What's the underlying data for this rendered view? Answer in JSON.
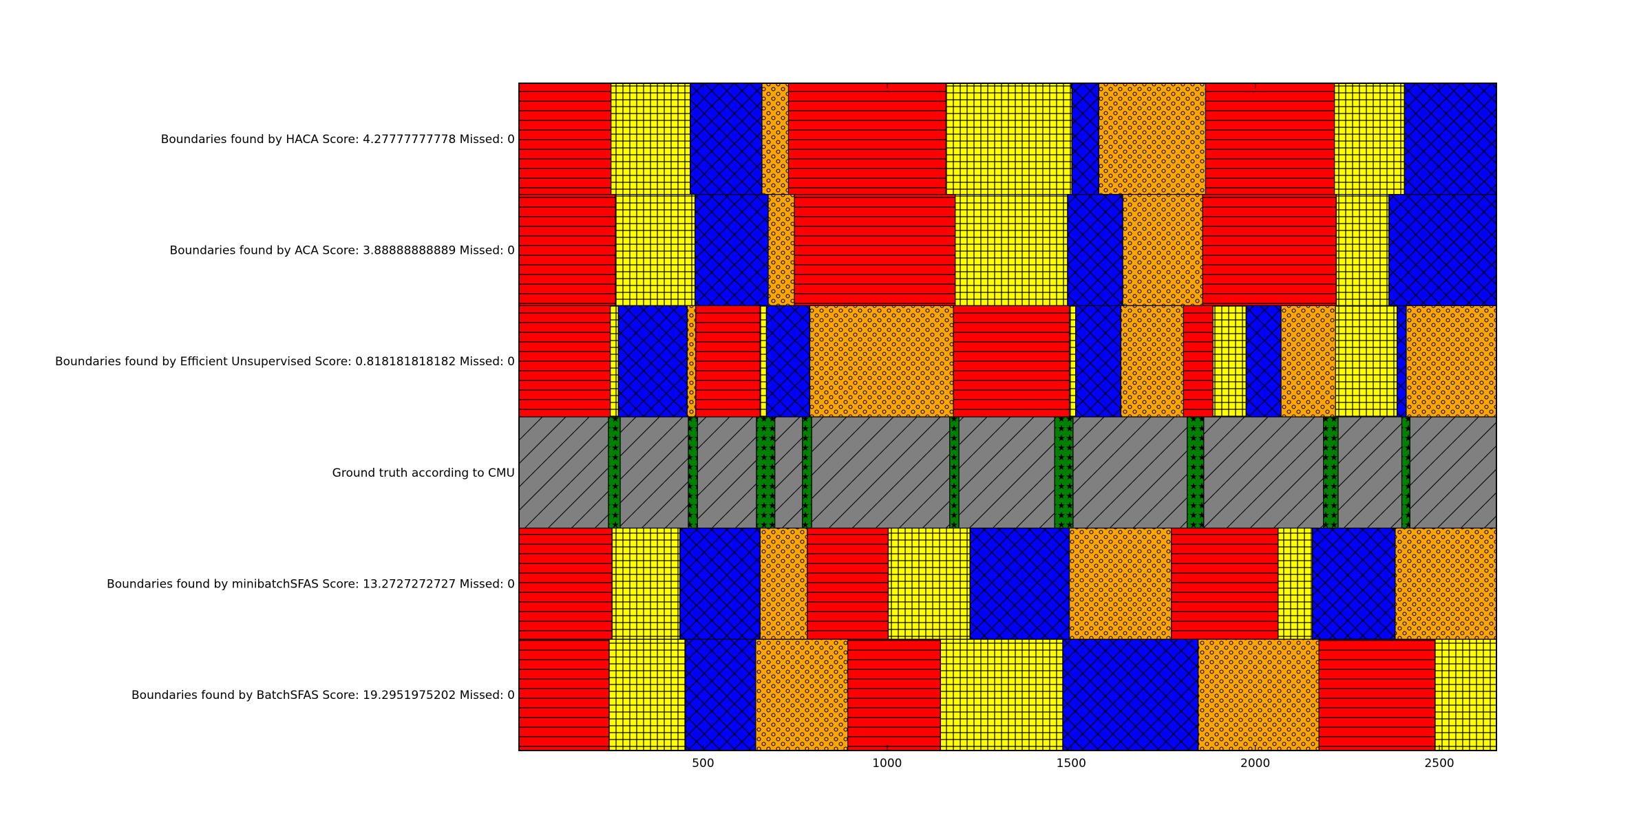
{
  "chart_data": {
    "type": "bar",
    "subtype": "horizontal-segment-timeline",
    "title": "",
    "xlabel": "",
    "ylabel": "",
    "xlim": [
      0,
      2655
    ],
    "xticks": [
      500,
      1000,
      1500,
      2000,
      2500
    ],
    "xtick_labels": [
      "500",
      "1000",
      "1500",
      "2000",
      "2500"
    ],
    "grid": false,
    "legend": "none",
    "styles": {
      "red": {
        "fill": "#ff0000",
        "pattern": "horizontal-lines"
      },
      "yellow": {
        "fill": "#ffff00",
        "pattern": "grid"
      },
      "blue": {
        "fill": "#0000ff",
        "pattern": "crosshatch"
      },
      "orange": {
        "fill": "#ffa500",
        "pattern": "circles"
      },
      "gray": {
        "fill": "#808080",
        "pattern": "diagonal-lines"
      },
      "green": {
        "fill": "#008000",
        "pattern": "stars"
      }
    },
    "rows": [
      {
        "label": "Boundaries found by HACA  Score: 4.27777777778 Missed: 0",
        "segments": [
          {
            "start": 0,
            "end": 250,
            "style": "red"
          },
          {
            "start": 250,
            "end": 465,
            "style": "yellow"
          },
          {
            "start": 465,
            "end": 660,
            "style": "blue"
          },
          {
            "start": 660,
            "end": 732,
            "style": "orange"
          },
          {
            "start": 732,
            "end": 1160,
            "style": "red"
          },
          {
            "start": 1160,
            "end": 1502,
            "style": "yellow"
          },
          {
            "start": 1502,
            "end": 1575,
            "style": "blue"
          },
          {
            "start": 1575,
            "end": 1865,
            "style": "orange"
          },
          {
            "start": 1865,
            "end": 2215,
            "style": "red"
          },
          {
            "start": 2215,
            "end": 2405,
            "style": "yellow"
          },
          {
            "start": 2405,
            "end": 2655,
            "style": "blue"
          }
        ]
      },
      {
        "label": "Boundaries found by ACA  Score: 3.88888888889 Missed: 0",
        "segments": [
          {
            "start": 0,
            "end": 262,
            "style": "red"
          },
          {
            "start": 262,
            "end": 478,
            "style": "yellow"
          },
          {
            "start": 478,
            "end": 677,
            "style": "blue"
          },
          {
            "start": 677,
            "end": 748,
            "style": "orange"
          },
          {
            "start": 748,
            "end": 1185,
            "style": "red"
          },
          {
            "start": 1185,
            "end": 1490,
            "style": "yellow"
          },
          {
            "start": 1490,
            "end": 1640,
            "style": "blue"
          },
          {
            "start": 1640,
            "end": 1857,
            "style": "orange"
          },
          {
            "start": 1857,
            "end": 2220,
            "style": "red"
          },
          {
            "start": 2220,
            "end": 2363,
            "style": "yellow"
          },
          {
            "start": 2363,
            "end": 2655,
            "style": "blue"
          }
        ]
      },
      {
        "label": "Boundaries found by Efficient Unsupervised Score: 0.818181818182 Missed: 0",
        "segments": [
          {
            "start": 0,
            "end": 248,
            "style": "red"
          },
          {
            "start": 248,
            "end": 270,
            "style": "yellow"
          },
          {
            "start": 270,
            "end": 457,
            "style": "blue"
          },
          {
            "start": 457,
            "end": 480,
            "style": "orange"
          },
          {
            "start": 480,
            "end": 655,
            "style": "red"
          },
          {
            "start": 655,
            "end": 672,
            "style": "yellow"
          },
          {
            "start": 672,
            "end": 790,
            "style": "blue"
          },
          {
            "start": 790,
            "end": 1180,
            "style": "orange"
          },
          {
            "start": 1180,
            "end": 1495,
            "style": "red"
          },
          {
            "start": 1495,
            "end": 1512,
            "style": "yellow"
          },
          {
            "start": 1512,
            "end": 1635,
            "style": "blue"
          },
          {
            "start": 1635,
            "end": 1805,
            "style": "orange"
          },
          {
            "start": 1805,
            "end": 1885,
            "style": "red"
          },
          {
            "start": 1885,
            "end": 1975,
            "style": "yellow"
          },
          {
            "start": 1975,
            "end": 2070,
            "style": "blue"
          },
          {
            "start": 2070,
            "end": 2218,
            "style": "orange"
          },
          {
            "start": 2218,
            "end": 2385,
            "style": "yellow"
          },
          {
            "start": 2385,
            "end": 2410,
            "style": "blue"
          },
          {
            "start": 2410,
            "end": 2655,
            "style": "orange"
          }
        ]
      },
      {
        "label": "Ground truth according to CMU",
        "segments": [
          {
            "start": 0,
            "end": 243,
            "style": "gray"
          },
          {
            "start": 243,
            "end": 275,
            "style": "green"
          },
          {
            "start": 275,
            "end": 460,
            "style": "gray"
          },
          {
            "start": 460,
            "end": 485,
            "style": "green"
          },
          {
            "start": 485,
            "end": 645,
            "style": "gray"
          },
          {
            "start": 645,
            "end": 695,
            "style": "green"
          },
          {
            "start": 695,
            "end": 770,
            "style": "gray"
          },
          {
            "start": 770,
            "end": 795,
            "style": "green"
          },
          {
            "start": 795,
            "end": 1170,
            "style": "gray"
          },
          {
            "start": 1170,
            "end": 1195,
            "style": "green"
          },
          {
            "start": 1195,
            "end": 1455,
            "style": "gray"
          },
          {
            "start": 1455,
            "end": 1505,
            "style": "green"
          },
          {
            "start": 1505,
            "end": 1815,
            "style": "gray"
          },
          {
            "start": 1815,
            "end": 1860,
            "style": "green"
          },
          {
            "start": 1860,
            "end": 2185,
            "style": "gray"
          },
          {
            "start": 2185,
            "end": 2225,
            "style": "green"
          },
          {
            "start": 2225,
            "end": 2398,
            "style": "gray"
          },
          {
            "start": 2398,
            "end": 2420,
            "style": "green"
          },
          {
            "start": 2420,
            "end": 2655,
            "style": "gray"
          }
        ]
      },
      {
        "label": "Boundaries found by minibatchSFAS Score: 13.2727272727 Missed: 0",
        "segments": [
          {
            "start": 0,
            "end": 253,
            "style": "red"
          },
          {
            "start": 253,
            "end": 437,
            "style": "yellow"
          },
          {
            "start": 437,
            "end": 655,
            "style": "blue"
          },
          {
            "start": 655,
            "end": 783,
            "style": "orange"
          },
          {
            "start": 783,
            "end": 1003,
            "style": "red"
          },
          {
            "start": 1003,
            "end": 1225,
            "style": "yellow"
          },
          {
            "start": 1225,
            "end": 1495,
            "style": "blue"
          },
          {
            "start": 1495,
            "end": 1772,
            "style": "orange"
          },
          {
            "start": 1772,
            "end": 2062,
            "style": "red"
          },
          {
            "start": 2062,
            "end": 2155,
            "style": "yellow"
          },
          {
            "start": 2155,
            "end": 2380,
            "style": "blue"
          },
          {
            "start": 2380,
            "end": 2655,
            "style": "orange"
          }
        ]
      },
      {
        "label": "Boundaries found by BatchSFAS  Score: 19.2951975202 Missed: 0",
        "segments": [
          {
            "start": 0,
            "end": 245,
            "style": "red"
          },
          {
            "start": 245,
            "end": 452,
            "style": "yellow"
          },
          {
            "start": 452,
            "end": 643,
            "style": "blue"
          },
          {
            "start": 643,
            "end": 893,
            "style": "orange"
          },
          {
            "start": 893,
            "end": 1145,
            "style": "red"
          },
          {
            "start": 1145,
            "end": 1477,
            "style": "yellow"
          },
          {
            "start": 1477,
            "end": 1845,
            "style": "blue"
          },
          {
            "start": 1845,
            "end": 2173,
            "style": "orange"
          },
          {
            "start": 2173,
            "end": 2488,
            "style": "red"
          },
          {
            "start": 2488,
            "end": 2655,
            "style": "yellow"
          }
        ]
      }
    ]
  }
}
